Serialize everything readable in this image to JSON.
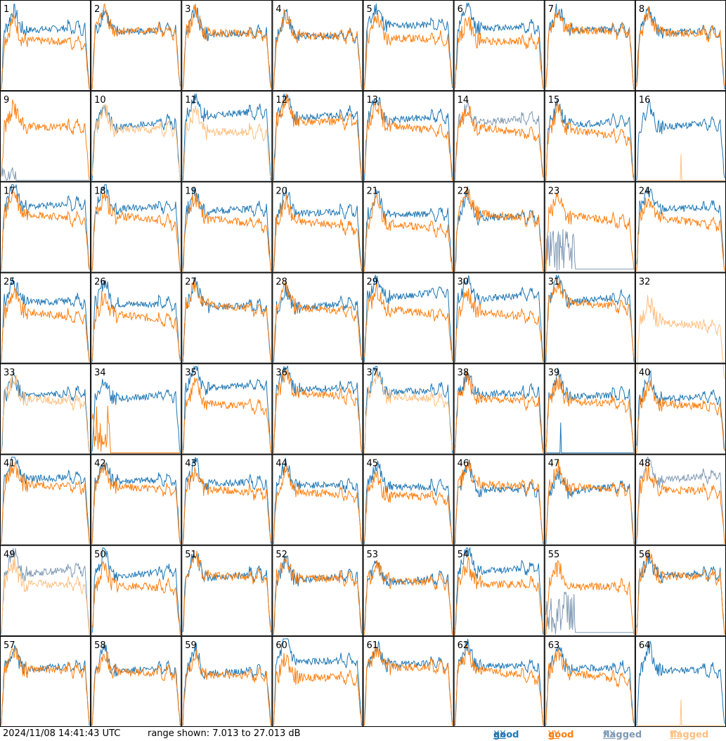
{
  "timestamp": "2024/11/08 14:41:43 UTC",
  "range_text": "range shown: 7.013 to 27.013 dB",
  "legend": [
    {
      "label": "good",
      "sym": "XX",
      "color": "#1f77b4"
    },
    {
      "label": "good",
      "sym": "YY",
      "color": "#ff7f0e"
    },
    {
      "label": "flagged",
      "sym": "XX",
      "color": "#7f99b4"
    },
    {
      "label": "flagged",
      "sym": "YY",
      "color": "#ffbf80"
    }
  ],
  "chart_data": {
    "type": "line",
    "title": "",
    "ylim": [
      7.013,
      27.013
    ],
    "units": "dB",
    "rows": 8,
    "cols": 8,
    "colors": {
      "good_xx": "#1f77b4",
      "good_yy": "#ff7f0e",
      "flagged_xx": "#7f99b4",
      "flagged_yy": "#ffbf80"
    },
    "panels": [
      {
        "id": "1"
      },
      {
        "id": "2"
      },
      {
        "id": "3"
      },
      {
        "id": "4"
      },
      {
        "id": "5"
      },
      {
        "id": "6"
      },
      {
        "id": "7"
      },
      {
        "id": "8"
      },
      {
        "id": "9",
        "flag": "xx_yy_flat"
      },
      {
        "id": "10",
        "flag": "yy"
      },
      {
        "id": "11",
        "flag": "yy"
      },
      {
        "id": "12"
      },
      {
        "id": "13"
      },
      {
        "id": "14",
        "flag": "xx"
      },
      {
        "id": "15"
      },
      {
        "id": "16",
        "flag": "yy_spike"
      },
      {
        "id": "17"
      },
      {
        "id": "18"
      },
      {
        "id": "19"
      },
      {
        "id": "20"
      },
      {
        "id": "21"
      },
      {
        "id": "22"
      },
      {
        "id": "23",
        "flag": "xx_low"
      },
      {
        "id": "24"
      },
      {
        "id": "25"
      },
      {
        "id": "26"
      },
      {
        "id": "27"
      },
      {
        "id": "28"
      },
      {
        "id": "29"
      },
      {
        "id": "30"
      },
      {
        "id": "31"
      },
      {
        "id": "32",
        "flag": "yy_only"
      },
      {
        "id": "33",
        "flag": "yy"
      },
      {
        "id": "34",
        "flag": "yy_low"
      },
      {
        "id": "35"
      },
      {
        "id": "36"
      },
      {
        "id": "37",
        "flag": "yy"
      },
      {
        "id": "38"
      },
      {
        "id": "39",
        "flag": "xx_spike"
      },
      {
        "id": "40"
      },
      {
        "id": "41"
      },
      {
        "id": "42"
      },
      {
        "id": "43"
      },
      {
        "id": "44"
      },
      {
        "id": "45"
      },
      {
        "id": "46"
      },
      {
        "id": "47"
      },
      {
        "id": "48",
        "flag": "xx"
      },
      {
        "id": "49",
        "flag": "both"
      },
      {
        "id": "50"
      },
      {
        "id": "51"
      },
      {
        "id": "52"
      },
      {
        "id": "53"
      },
      {
        "id": "54"
      },
      {
        "id": "55",
        "flag": "xx_low"
      },
      {
        "id": "56"
      },
      {
        "id": "57"
      },
      {
        "id": "58"
      },
      {
        "id": "59"
      },
      {
        "id": "60"
      },
      {
        "id": "61"
      },
      {
        "id": "62"
      },
      {
        "id": "63"
      },
      {
        "id": "64",
        "flag": "yy_spike"
      }
    ]
  }
}
